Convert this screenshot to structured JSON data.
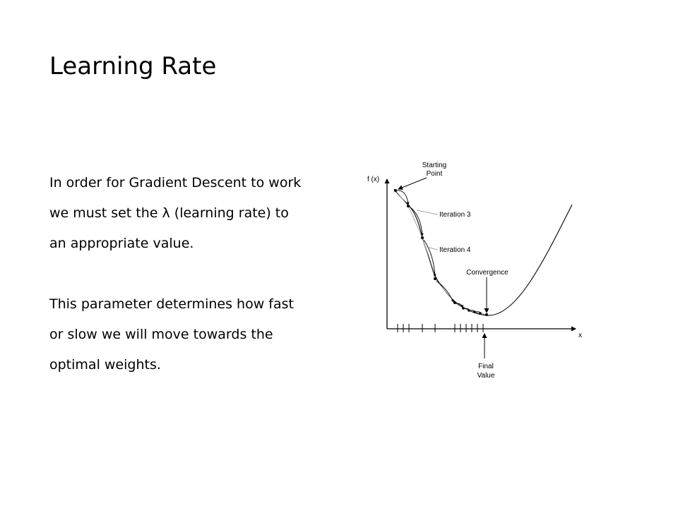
{
  "slide": {
    "title": "Learning Rate",
    "paragraphs": [
      {
        "lines": [
          "In order for Gradient Descent to work",
          "we must set the λ (learning rate) to",
          "an appropriate value."
        ]
      },
      {
        "lines": [
          "This parameter determines how fast",
          "or slow we will move towards the",
          "optimal weights."
        ]
      }
    ]
  },
  "diagram": {
    "y_axis_label": "f (x)",
    "x_axis_label": "x",
    "annotations": {
      "starting_point_line1": "Starting",
      "starting_point_line2": "Point",
      "iteration3": "Iteration 3",
      "iteration4": "Iteration 4",
      "convergence": "Convergence",
      "final_value_line1": "Final",
      "final_value_line2": "Value"
    }
  }
}
